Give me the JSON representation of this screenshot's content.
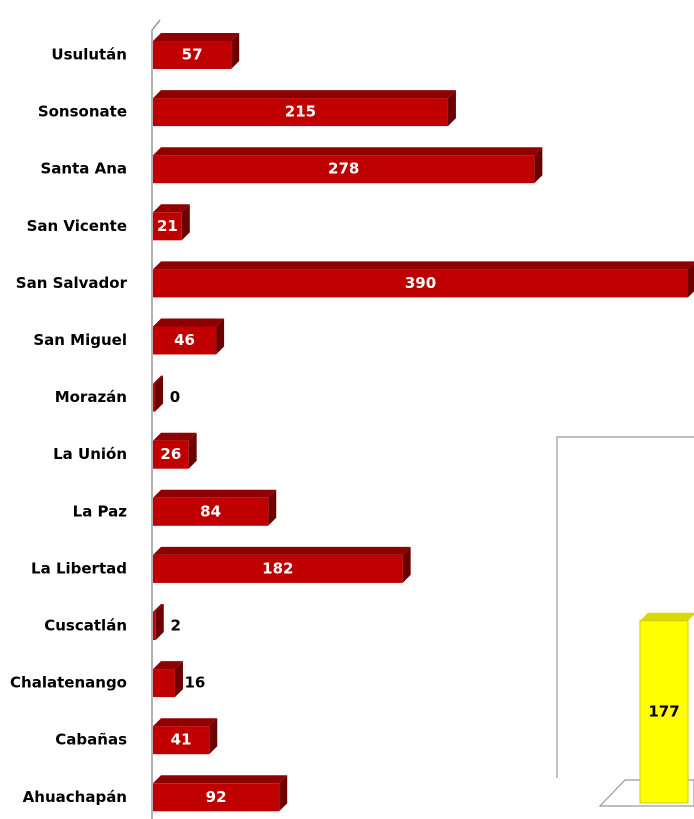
{
  "chart_data": [
    {
      "type": "hbar",
      "categories": [
        "Usulután",
        "Sonsonate",
        "Santa Ana",
        "San Vicente",
        "San Salvador",
        "San Miguel",
        "Morazán",
        "La Unión",
        "La Paz",
        "La Libertad",
        "Cuscatlán",
        "Chalatenango",
        "Cabañas",
        "Ahuachapán"
      ],
      "values": [
        57,
        215,
        278,
        21,
        390,
        46,
        0,
        26,
        84,
        182,
        2,
        16,
        41,
        92
      ],
      "color": "#c00000",
      "xlim": [
        0,
        390
      ]
    },
    {
      "type": "bar",
      "categories": [
        null
      ],
      "values": [
        177
      ],
      "color": "#ffff00",
      "ylim": [
        0,
        200
      ]
    }
  ]
}
